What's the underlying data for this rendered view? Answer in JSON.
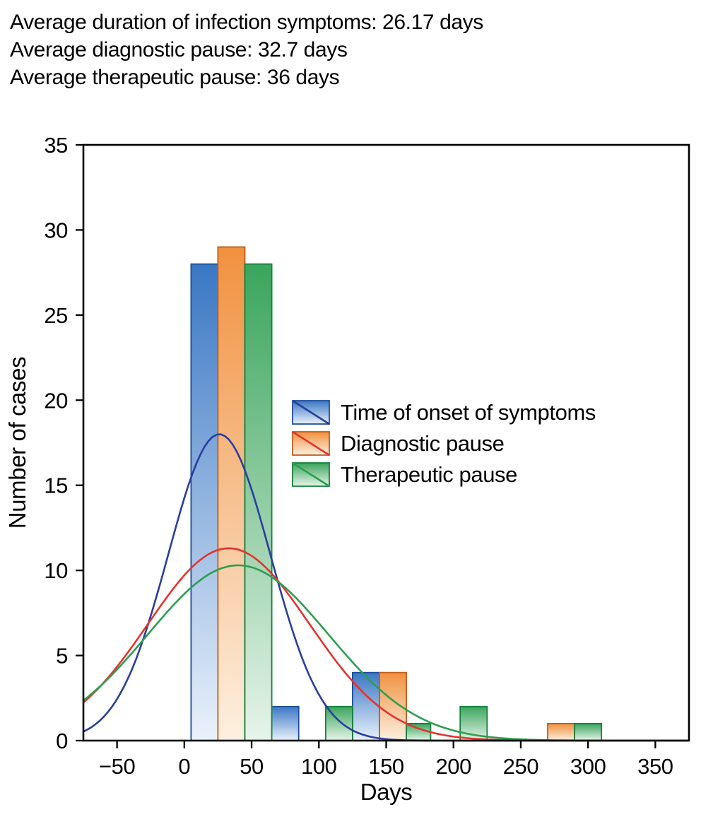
{
  "page": {
    "background": "#ffffff"
  },
  "header": {
    "lines": [
      "Average duration of infection symptoms: 26.17 days",
      "Average diagnostic pause: 32.7 days",
      "Average therapeutic pause: 36 days"
    ]
  },
  "chart_data": {
    "type": "bar",
    "subtype": "grouped_histogram_with_normal_fit_curves",
    "title": "",
    "xlabel": "Days",
    "ylabel": "Number of cases",
    "xlim": [
      -75,
      375
    ],
    "ylim": [
      0,
      35
    ],
    "grid": false,
    "bin_width_days": 20,
    "legend_position": "inside-center-left",
    "x_ticks": [
      {
        "v": -50,
        "label": "−50"
      },
      {
        "v": 0,
        "label": "0"
      },
      {
        "v": 50,
        "label": "50"
      },
      {
        "v": 100,
        "label": "100"
      },
      {
        "v": 150,
        "label": "150"
      },
      {
        "v": 200,
        "label": "200"
      },
      {
        "v": 250,
        "label": "250"
      },
      {
        "v": 300,
        "label": "300"
      },
      {
        "v": 350,
        "label": "350"
      }
    ],
    "y_ticks": [
      0,
      5,
      10,
      15,
      20,
      25,
      30,
      35
    ],
    "series": [
      {
        "name": "Time of onset of symptoms",
        "average": "26.17 days",
        "bar_fill_top": "#3a77c4",
        "bar_fill_bottom": "#eaf2fb",
        "bar_border": "#1d4e9e",
        "curve_color": "#2b3e9e",
        "normal_fit": {
          "mean": 26,
          "sd": 38,
          "peak": 18
        },
        "bars": [
          {
            "x0": 5,
            "x1": 25,
            "count": 28
          },
          {
            "x0": 65,
            "x1": 85,
            "count": 2
          },
          {
            "x0": 125,
            "x1": 145,
            "count": 4
          }
        ]
      },
      {
        "name": "Diagnostic pause",
        "average": "32.7 days",
        "bar_fill_top": "#f1913f",
        "bar_fill_bottom": "#fdf0e1",
        "bar_border": "#bf5e1a",
        "curve_color": "#e5332c",
        "normal_fit": {
          "mean": 33,
          "sd": 60,
          "peak": 11.3
        },
        "bars": [
          {
            "x0": 25,
            "x1": 45,
            "count": 29
          },
          {
            "x0": 145,
            "x1": 165,
            "count": 4
          },
          {
            "x0": 270,
            "x1": 290,
            "count": 1
          }
        ]
      },
      {
        "name": "Therapeutic pause",
        "average": "36 days",
        "bar_fill_top": "#3aa55c",
        "bar_fill_bottom": "#e7f4ea",
        "bar_border": "#15813c",
        "curve_color": "#2d9e50",
        "normal_fit": {
          "mean": 40,
          "sd": 67,
          "peak": 10.3
        },
        "bars": [
          {
            "x0": 45,
            "x1": 65,
            "count": 28
          },
          {
            "x0": 105,
            "x1": 125,
            "count": 2
          },
          {
            "x0": 165,
            "x1": 183,
            "count": 1
          },
          {
            "x0": 205,
            "x1": 225,
            "count": 2
          },
          {
            "x0": 290,
            "x1": 310,
            "count": 1
          }
        ]
      }
    ]
  }
}
